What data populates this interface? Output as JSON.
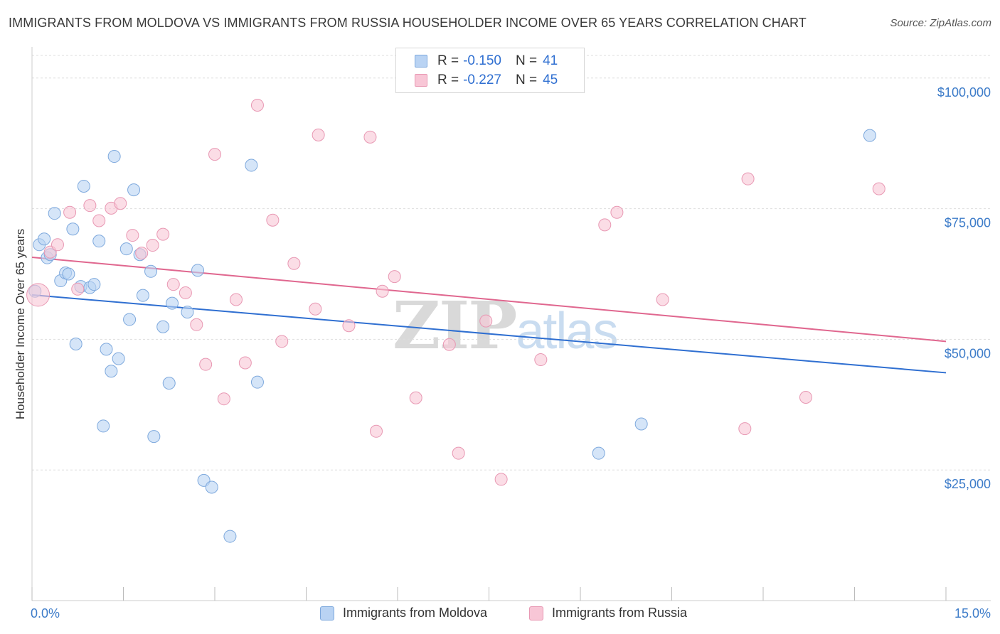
{
  "title": "IMMIGRANTS FROM MOLDOVA VS IMMIGRANTS FROM RUSSIA HOUSEHOLDER INCOME OVER 65 YEARS CORRELATION CHART",
  "source": "Source: ZipAtlas.com",
  "watermark": {
    "part1": "ZIP",
    "part2": "atlas"
  },
  "legend": {
    "moldova": {
      "r_label": "R = ",
      "r_value": "-0.150",
      "n_label": "N = ",
      "n_value": "41"
    },
    "russia": {
      "r_label": "R = ",
      "r_value": "-0.227",
      "n_label": "N = ",
      "n_value": "45"
    }
  },
  "bottom_legend": {
    "moldova": "Immigrants from Moldova",
    "russia": "Immigrants from Russia"
  },
  "colors": {
    "moldova_fill": "#b9d3f3",
    "moldova_stroke": "#7ea9dd",
    "moldova_line": "#2f6fd1",
    "russia_fill": "#f8c6d6",
    "russia_stroke": "#e898b3",
    "russia_line": "#e0678f",
    "tick_text": "#3d7cc9",
    "grid": "#dddddd"
  },
  "chart_data": {
    "type": "scatter",
    "title": "IMMIGRANTS FROM MOLDOVA VS IMMIGRANTS FROM RUSSIA HOUSEHOLDER INCOME OVER 65 YEARS CORRELATION CHART",
    "xlabel": "",
    "ylabel": "Householder Income Over 65 years",
    "xlim": [
      0,
      15
    ],
    "ylim": [
      0,
      105000
    ],
    "x_tick_labels": [
      "0.0%",
      "15.0%"
    ],
    "y_ticks": [
      25000,
      50000,
      75000,
      100000
    ],
    "y_tick_labels": [
      "$25,000",
      "$50,000",
      "$75,000",
      "$100,000"
    ],
    "grid": true,
    "series": [
      {
        "name": "Immigrants from Moldova",
        "color": "#2f6fd1",
        "trend": {
          "x": [
            0,
            15
          ],
          "y": [
            58500,
            43600
          ]
        },
        "points": [
          [
            0.05,
            59200
          ],
          [
            0.12,
            68100
          ],
          [
            0.2,
            69200
          ],
          [
            0.25,
            65600
          ],
          [
            0.3,
            66200
          ],
          [
            0.37,
            74100
          ],
          [
            0.47,
            61200
          ],
          [
            0.55,
            62700
          ],
          [
            0.6,
            62500
          ],
          [
            0.67,
            71100
          ],
          [
            0.72,
            49100
          ],
          [
            0.8,
            60100
          ],
          [
            0.85,
            79300
          ],
          [
            0.95,
            59900
          ],
          [
            1.02,
            60500
          ],
          [
            1.1,
            68800
          ],
          [
            1.17,
            33400
          ],
          [
            1.22,
            48100
          ],
          [
            1.3,
            43900
          ],
          [
            1.35,
            85000
          ],
          [
            1.42,
            46300
          ],
          [
            1.55,
            67300
          ],
          [
            1.6,
            53800
          ],
          [
            1.67,
            78600
          ],
          [
            1.77,
            66200
          ],
          [
            1.82,
            58400
          ],
          [
            1.95,
            63000
          ],
          [
            2.0,
            31400
          ],
          [
            2.15,
            52400
          ],
          [
            2.25,
            41600
          ],
          [
            2.3,
            56900
          ],
          [
            2.55,
            55200
          ],
          [
            2.72,
            63200
          ],
          [
            2.82,
            23000
          ],
          [
            2.95,
            21700
          ],
          [
            3.25,
            12300
          ],
          [
            3.6,
            83300
          ],
          [
            3.7,
            41800
          ],
          [
            9.3,
            28200
          ],
          [
            10.0,
            33800
          ],
          [
            13.75,
            89000
          ]
        ]
      },
      {
        "name": "Immigrants from Russia",
        "color": "#e0678f",
        "trend": {
          "x": [
            0,
            15
          ],
          "y": [
            65700,
            49600
          ]
        },
        "points": [
          [
            0.1,
            58500
          ],
          [
            0.3,
            66700
          ],
          [
            0.42,
            68100
          ],
          [
            0.62,
            74300
          ],
          [
            0.75,
            59600
          ],
          [
            0.95,
            75600
          ],
          [
            1.1,
            72700
          ],
          [
            1.3,
            75100
          ],
          [
            1.45,
            76000
          ],
          [
            1.65,
            69900
          ],
          [
            1.8,
            66500
          ],
          [
            1.98,
            68000
          ],
          [
            2.15,
            70100
          ],
          [
            2.32,
            60500
          ],
          [
            2.52,
            58900
          ],
          [
            2.7,
            52800
          ],
          [
            2.85,
            45200
          ],
          [
            3.0,
            85400
          ],
          [
            3.15,
            38600
          ],
          [
            3.35,
            57600
          ],
          [
            3.5,
            45500
          ],
          [
            3.7,
            94800
          ],
          [
            3.95,
            72800
          ],
          [
            4.1,
            49600
          ],
          [
            4.3,
            64500
          ],
          [
            4.65,
            55800
          ],
          [
            4.7,
            89100
          ],
          [
            5.2,
            52600
          ],
          [
            5.65,
            32400
          ],
          [
            5.55,
            88700
          ],
          [
            5.75,
            59200
          ],
          [
            5.95,
            62000
          ],
          [
            6.3,
            38800
          ],
          [
            6.85,
            49000
          ],
          [
            7.0,
            28200
          ],
          [
            7.45,
            53500
          ],
          [
            7.7,
            23200
          ],
          [
            8.35,
            46100
          ],
          [
            9.4,
            71900
          ],
          [
            9.6,
            74300
          ],
          [
            10.35,
            57600
          ],
          [
            11.7,
            32900
          ],
          [
            11.75,
            80700
          ],
          [
            12.7,
            38900
          ],
          [
            13.9,
            78800
          ]
        ]
      }
    ]
  }
}
